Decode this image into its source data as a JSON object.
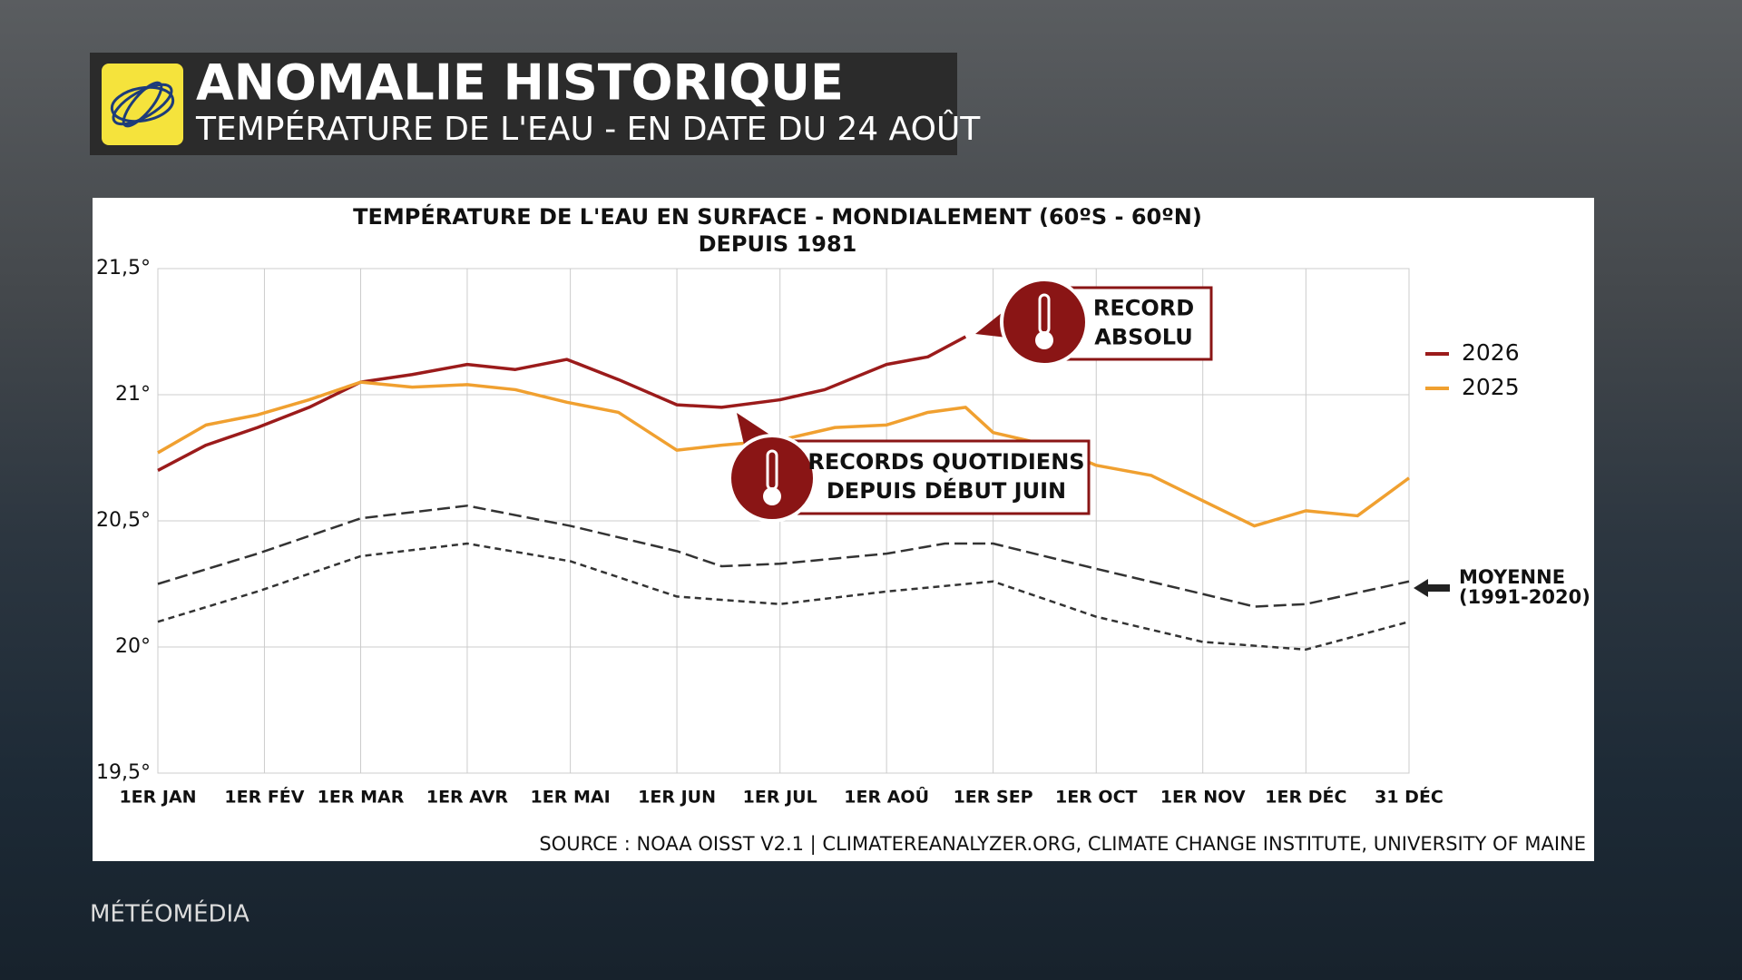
{
  "header": {
    "title": "ANOMALIE HISTORIQUE",
    "subtitle": "TEMPÉRATURE DE L'EAU - EN DATE DU 24 AOÛT"
  },
  "chart_data": {
    "type": "line",
    "title": "TEMPÉRATURE DE L'EAU EN SURFACE - MONDIALEMENT (60ºS - 60ºN)",
    "subtitle": "DEPUIS 1981",
    "xlim": [
      1,
      365
    ],
    "xticks": [
      {
        "value": 1,
        "label": "1ER JAN"
      },
      {
        "value": 32,
        "label": "1ER FÉV"
      },
      {
        "value": 60,
        "label": "1ER MAR"
      },
      {
        "value": 91,
        "label": "1ER AVR"
      },
      {
        "value": 121,
        "label": "1ER MAI"
      },
      {
        "value": 152,
        "label": "1ER JUN"
      },
      {
        "value": 182,
        "label": "1ER JUL"
      },
      {
        "value": 213,
        "label": "1ER AOÛ"
      },
      {
        "value": 244,
        "label": "1ER SEP"
      },
      {
        "value": 274,
        "label": "1ER OCT"
      },
      {
        "value": 305,
        "label": "1ER NOV"
      },
      {
        "value": 335,
        "label": "1ER DÉC"
      },
      {
        "value": 365,
        "label": "31 DÉC"
      }
    ],
    "ylim": [
      19.5,
      21.5
    ],
    "yticks": [
      {
        "value": 19.5,
        "label": "19,5°"
      },
      {
        "value": 20,
        "label": "20°"
      },
      {
        "value": 20.5,
        "label": "20,5°"
      },
      {
        "value": 21,
        "label": "21°"
      },
      {
        "value": 21.5,
        "label": "21,5°"
      }
    ],
    "grid": true,
    "series": [
      {
        "name": "2026",
        "color": "#9b1b1b",
        "x": [
          1,
          15,
          30,
          45,
          60,
          75,
          91,
          105,
          120,
          135,
          152,
          165,
          182,
          195,
          213,
          225,
          236
        ],
        "values": [
          20.7,
          20.8,
          20.87,
          20.95,
          21.05,
          21.08,
          21.12,
          21.1,
          21.14,
          21.06,
          20.96,
          20.95,
          20.98,
          21.02,
          21.12,
          21.15,
          21.23
        ]
      },
      {
        "name": "2025",
        "color": "#f0a030",
        "x": [
          1,
          15,
          30,
          45,
          60,
          75,
          91,
          105,
          120,
          135,
          152,
          165,
          182,
          198,
          213,
          225,
          236,
          244,
          260,
          274,
          290,
          305,
          320,
          335,
          350,
          365
        ],
        "values": [
          20.77,
          20.88,
          20.92,
          20.98,
          21.05,
          21.03,
          21.04,
          21.02,
          20.97,
          20.93,
          20.78,
          20.8,
          20.82,
          20.87,
          20.88,
          20.93,
          20.95,
          20.85,
          20.8,
          20.72,
          20.68,
          20.58,
          20.48,
          20.54,
          20.52,
          20.67
        ]
      },
      {
        "color": "#333333",
        "dash": "long",
        "x": [
          1,
          30,
          60,
          91,
          121,
          152,
          165,
          182,
          213,
          230,
          244,
          274,
          305,
          320,
          335,
          365
        ],
        "values": [
          20.25,
          20.37,
          20.51,
          20.56,
          20.48,
          20.38,
          20.32,
          20.33,
          20.37,
          20.41,
          20.41,
          20.31,
          20.21,
          20.16,
          20.17,
          20.26
        ]
      },
      {
        "color": "#333333",
        "dash": "short",
        "x": [
          1,
          30,
          60,
          91,
          121,
          152,
          182,
          213,
          244,
          274,
          305,
          335,
          365
        ],
        "values": [
          20.1,
          20.22,
          20.36,
          20.41,
          20.34,
          20.2,
          20.17,
          20.22,
          20.26,
          20.12,
          20.02,
          19.99,
          20.1
        ]
      }
    ],
    "annotations": {
      "record": [
        "RECORD",
        "ABSOLU"
      ],
      "daily": [
        "RECORDS QUOTIDIENS",
        "DEPUIS DÉBUT JUIN"
      ],
      "mean": [
        "MOYENNE",
        "(1991-2020)"
      ]
    },
    "source": "SOURCE : NOAA OISST V2.1 | CLIMATEREANALYZER.ORG, CLIMATE CHANGE INSTITUTE, UNIVERSITY OF MAINE"
  },
  "brand": "MÉTÉOMÉDIA"
}
